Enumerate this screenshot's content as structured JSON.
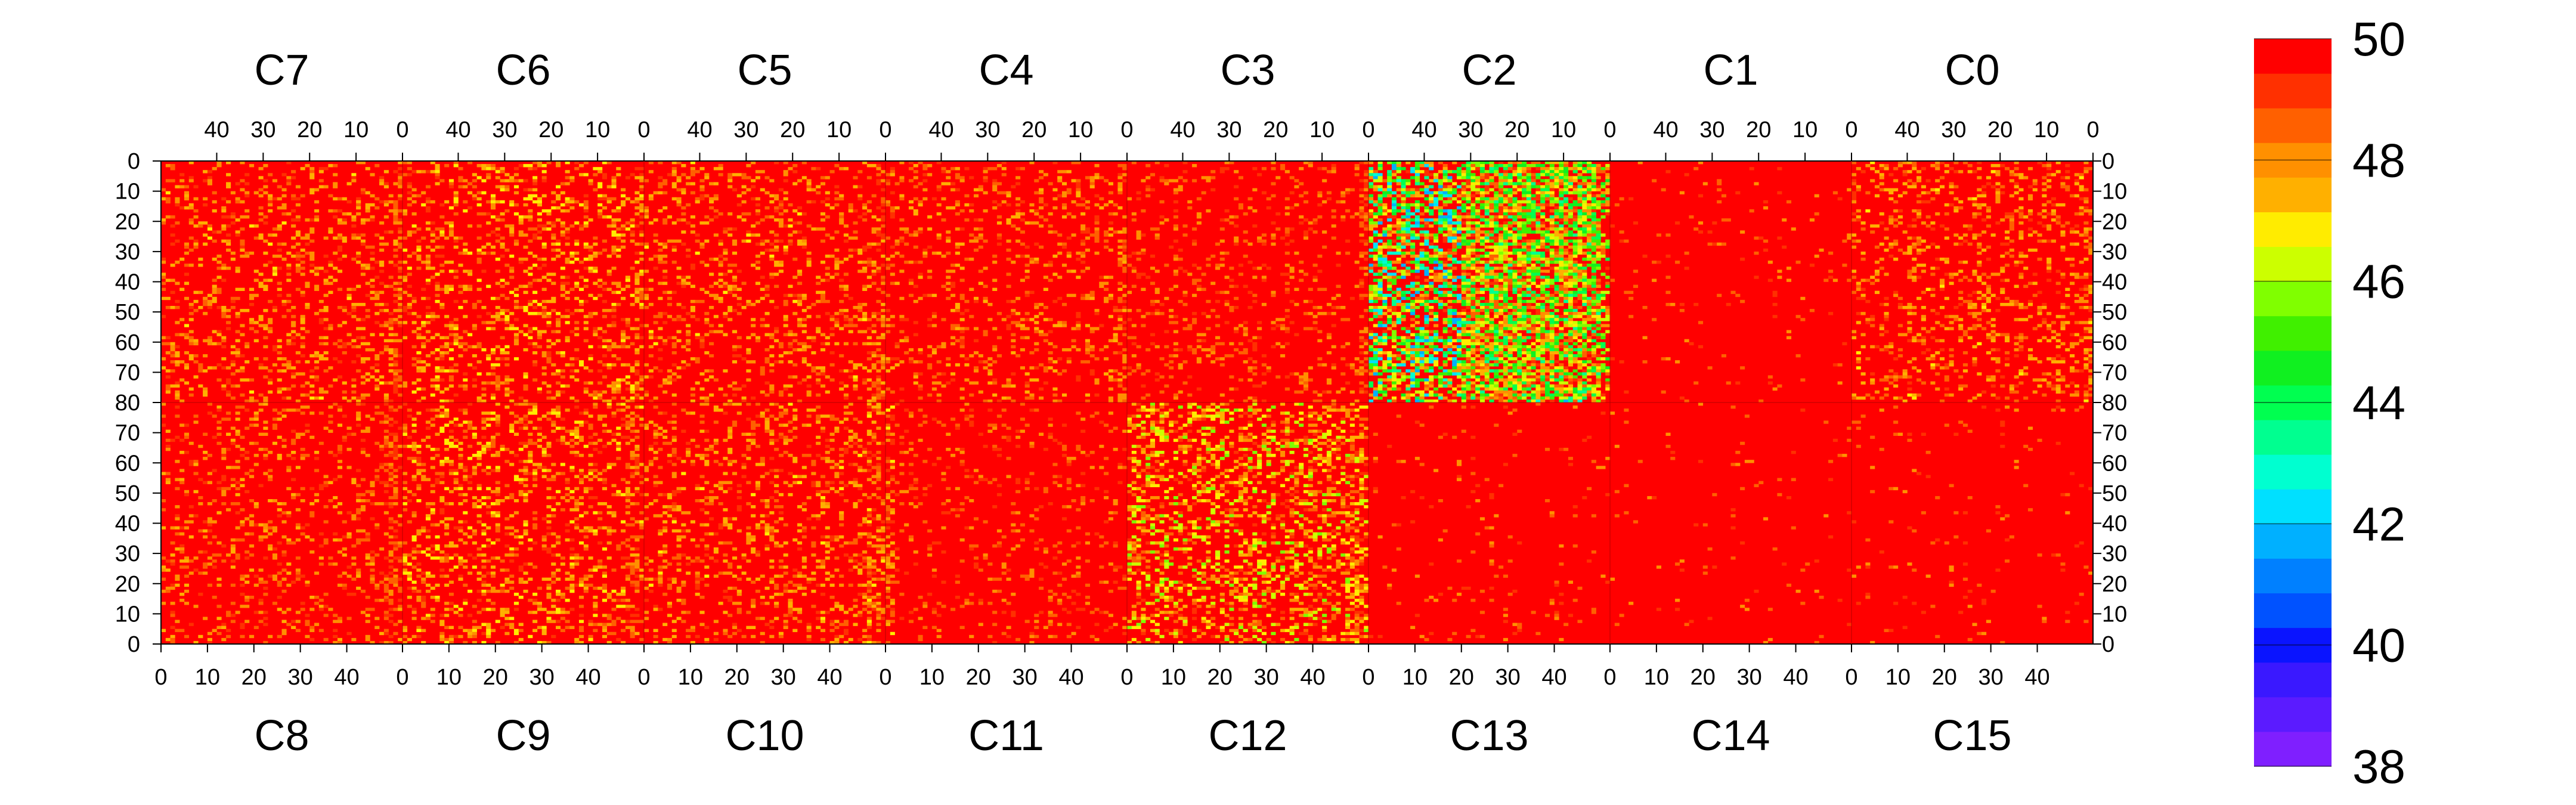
{
  "chart_data": {
    "type": "heatmap",
    "title": "",
    "xlabel": "",
    "ylabel": "",
    "top_chip_labels": [
      "C7",
      "C6",
      "C5",
      "C4",
      "C3",
      "C2",
      "C1",
      "C0"
    ],
    "bottom_chip_labels": [
      "C8",
      "C9",
      "C10",
      "C11",
      "C12",
      "C13",
      "C14",
      "C15"
    ],
    "columns_per_chip": 52,
    "rows_per_half": 80,
    "top_x_ticks": [
      "40",
      "30",
      "20",
      "10",
      "0"
    ],
    "bottom_x_ticks": [
      "0",
      "10",
      "20",
      "30",
      "40"
    ],
    "top_y_ticks": [
      "0",
      "10",
      "20",
      "30",
      "40",
      "50",
      "60",
      "70",
      "80"
    ],
    "bottom_y_ticks": [
      "70",
      "60",
      "50",
      "40",
      "30",
      "20",
      "10",
      "0"
    ],
    "z_range": [
      38,
      50
    ],
    "colorbar_ticks": [
      "50",
      "48",
      "46",
      "44",
      "42",
      "40",
      "38"
    ],
    "colorbar_colors": [
      "#7f1fff",
      "#5b1bff",
      "#3a18ff",
      "#0a14ff",
      "#0052ff",
      "#0080ff",
      "#00b0ff",
      "#00e0ff",
      "#00ffd0",
      "#00ff90",
      "#00ff50",
      "#10f020",
      "#40f000",
      "#80ff00",
      "#ccff00",
      "#ffec00",
      "#ffb000",
      "#ff9000",
      "#ff6000",
      "#ff3000",
      "#ff0000"
    ],
    "baseline_value": 50,
    "chips": [
      {
        "label": "C7",
        "half": "top",
        "mean_fill": 49.4,
        "edge_columns": "0",
        "edge_value": 47.5
      },
      {
        "label": "C6",
        "half": "top",
        "mean_fill": 49.3,
        "edge_columns": "0",
        "edge_value": 47.0
      },
      {
        "label": "C5",
        "half": "top",
        "mean_fill": 49.4,
        "edge_columns": "0",
        "edge_value": 47.5
      },
      {
        "label": "C4",
        "half": "top",
        "mean_fill": 49.5,
        "edge_columns": "0",
        "edge_value": 47.5
      },
      {
        "label": "C3",
        "half": "top",
        "mean_fill": 49.6,
        "edge_columns": "0",
        "edge_value": 48.0
      },
      {
        "label": "C2",
        "half": "top",
        "mean_fill": 47.8,
        "edge_columns": "0",
        "edge_value": 44.0,
        "noisy_columns": "20-50"
      },
      {
        "label": "C1",
        "half": "top",
        "mean_fill": 49.9
      },
      {
        "label": "C0",
        "half": "top",
        "mean_fill": 49.4,
        "edge_columns": "0",
        "edge_value": 47.0
      },
      {
        "label": "C8",
        "half": "bottom",
        "mean_fill": 49.5,
        "edge_columns": "49",
        "edge_value": 48.0
      },
      {
        "label": "C9",
        "half": "bottom",
        "mean_fill": 49.3,
        "edge_columns": "49",
        "edge_value": 47.5
      },
      {
        "label": "C10",
        "half": "bottom",
        "mean_fill": 49.4,
        "edge_columns": "49",
        "edge_value": 47.0
      },
      {
        "label": "C11",
        "half": "bottom",
        "mean_fill": 49.7,
        "edge_columns": "0",
        "edge_value": 47.0
      },
      {
        "label": "C12",
        "half": "bottom",
        "mean_fill": 49.0,
        "edge_columns": "49",
        "edge_value": 46.5
      },
      {
        "label": "C13",
        "half": "bottom",
        "mean_fill": 49.9
      },
      {
        "label": "C14",
        "half": "bottom",
        "mean_fill": 49.95
      },
      {
        "label": "C15",
        "half": "bottom",
        "mean_fill": 49.9
      }
    ]
  }
}
